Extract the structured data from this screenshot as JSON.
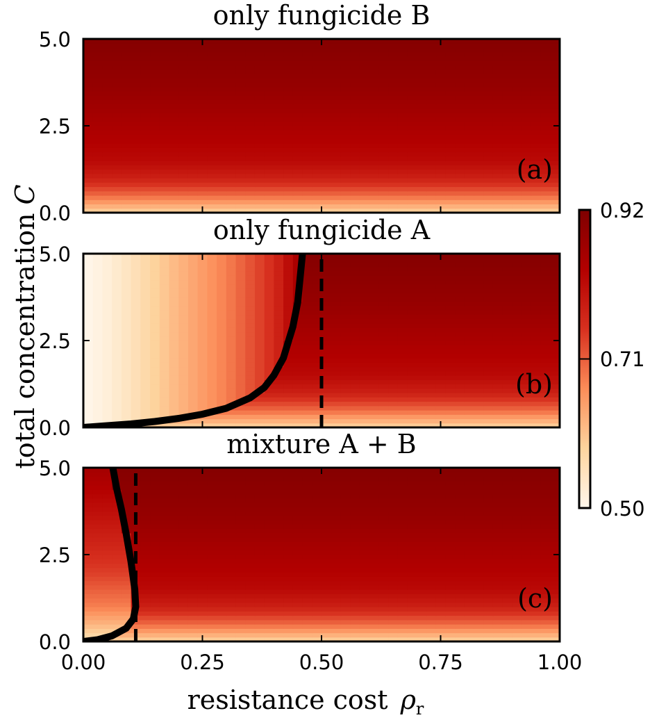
{
  "chart_data": {
    "type": "heatmap",
    "xlabel": "resistance cost",
    "xlabel_symbol": "ρ",
    "xlabel_subscript": "r",
    "ylabel": "total concentration",
    "ylabel_symbol": "C",
    "xlim": [
      0.0,
      1.0
    ],
    "ylim": [
      0.0,
      5.0
    ],
    "x_ticks": [
      "0.00",
      "0.25",
      "0.50",
      "0.75",
      "1.00"
    ],
    "y_ticks": [
      "0.0",
      "2.5",
      "5.0"
    ],
    "colorbar": {
      "min": 0.5,
      "max": 0.92,
      "ticks": [
        "0.50",
        "0.71",
        "0.92"
      ],
      "colormap": "OrRd",
      "colors": [
        "#fff7ec",
        "#fdd49e",
        "#fc8d59",
        "#d7301f",
        "#b30000",
        "#7f0000"
      ]
    },
    "panels": [
      {
        "title": "only fungicide B",
        "label": "(a)",
        "value_by_concentration": {
          "C": [
            0.0,
            0.25,
            0.5,
            1.0,
            1.5,
            2.5,
            3.5,
            5.0
          ],
          "value": [
            0.58,
            0.64,
            0.7,
            0.78,
            0.82,
            0.85,
            0.88,
            0.91
          ]
        },
        "boundary_curve": null,
        "dashed_line_x": null
      },
      {
        "title": "only fungicide A",
        "label": "(b)",
        "value_by_concentration": {
          "C": [
            0.0,
            0.25,
            0.5,
            1.0,
            1.5,
            2.5,
            3.5,
            5.0
          ],
          "value": [
            0.58,
            0.64,
            0.7,
            0.78,
            0.82,
            0.85,
            0.88,
            0.91
          ]
        },
        "left_region_value_at_rho": {
          "rho": [
            0.0,
            0.05,
            0.1,
            0.2,
            0.3,
            0.4,
            0.45
          ],
          "value": [
            0.5,
            0.52,
            0.55,
            0.62,
            0.68,
            0.76,
            0.85
          ]
        },
        "boundary_curve": {
          "rho": [
            0.0,
            0.05,
            0.1,
            0.15,
            0.2,
            0.25,
            0.3,
            0.35,
            0.38,
            0.4,
            0.42,
            0.44,
            0.45,
            0.46
          ],
          "C": [
            0.0,
            0.05,
            0.1,
            0.17,
            0.26,
            0.38,
            0.55,
            0.85,
            1.15,
            1.5,
            2.0,
            2.9,
            3.6,
            5.0
          ]
        },
        "dashed_line_x": 0.5
      },
      {
        "title": "mixture A + B",
        "label": "(c)",
        "value_by_concentration": {
          "C": [
            0.0,
            0.25,
            0.5,
            1.0,
            1.5,
            2.5,
            3.5,
            5.0
          ],
          "value": [
            0.58,
            0.64,
            0.7,
            0.78,
            0.82,
            0.85,
            0.88,
            0.91
          ]
        },
        "left_region_value_by_concentration": {
          "C": [
            0.0,
            0.5,
            1.0,
            2.0,
            3.0,
            4.0,
            5.0
          ],
          "value": [
            0.55,
            0.62,
            0.68,
            0.74,
            0.78,
            0.82,
            0.86
          ]
        },
        "boundary_curve": {
          "rho": [
            0.0,
            0.03,
            0.06,
            0.09,
            0.105,
            0.11,
            0.108,
            0.1,
            0.09,
            0.08,
            0.07,
            0.062
          ],
          "C": [
            0.0,
            0.05,
            0.16,
            0.38,
            0.65,
            1.0,
            1.5,
            2.3,
            3.1,
            3.8,
            4.4,
            5.0
          ]
        },
        "dashed_line_x": 0.11
      }
    ]
  }
}
